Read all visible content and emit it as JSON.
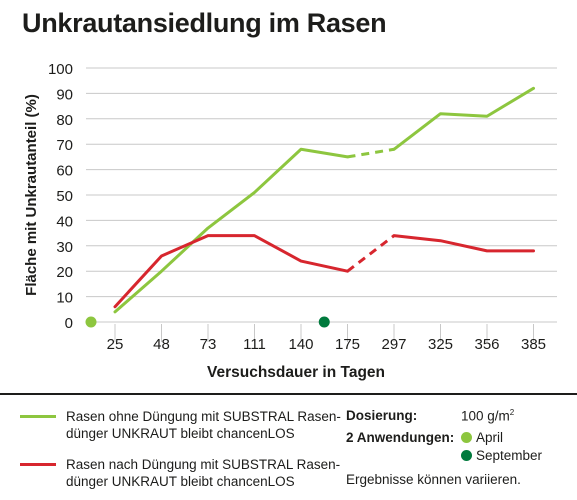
{
  "colors": {
    "green": "#8dc63f",
    "red": "#d7262e",
    "dot_april": "#8dc63f",
    "dot_september": "#007a3d",
    "grid": "#c8c8c8",
    "text": "#1d1d1b"
  },
  "chart_data": {
    "type": "line",
    "title": "Unkrautansiedlung im Rasen",
    "xlabel": "Versuchsdauer in Tagen",
    "ylabel": "Fläche mit Unkrautanteil (%)",
    "ylim": [
      0,
      100
    ],
    "yticks": [
      0,
      10,
      20,
      30,
      40,
      50,
      60,
      70,
      80,
      90,
      100
    ],
    "categories": [
      "25",
      "48",
      "73",
      "111",
      "140",
      "175",
      "297",
      "325",
      "356",
      "385"
    ],
    "grid": true,
    "dashed_segment": [
      "175",
      "297"
    ],
    "series": [
      {
        "name": "Rasen ohne Düngung mit SUBSTRAL Rasendünger UNKRAUT bleibt chancenLOS",
        "color_key": "green",
        "values": [
          4,
          20,
          37,
          51,
          68,
          65,
          68,
          82,
          81,
          92
        ]
      },
      {
        "name": "Rasen nach Düngung mit SUBSTRAL Rasendünger UNKRAUT bleibt chancenLOS",
        "color_key": "red",
        "values": [
          6,
          26,
          34,
          34,
          24,
          20,
          34,
          32,
          28,
          28
        ]
      }
    ],
    "application_markers": [
      {
        "label": "April",
        "position_between": [
          "",
          "25"
        ],
        "color_key": "dot_april"
      },
      {
        "label": "September",
        "position_between": [
          "140",
          "175"
        ],
        "color_key": "dot_september"
      }
    ]
  },
  "legend": {
    "green_line1": "Rasen ohne Düngung mit SUBSTRAL Rasen-",
    "green_line2": "dünger UNKRAUT bleibt chancenLOS",
    "red_line1": "Rasen nach Düngung mit SUBSTRAL Rasen-",
    "red_line2": "dünger UNKRAUT bleibt chancenLOS"
  },
  "info": {
    "dosierung_label": "Dosierung:",
    "dosierung_value": "100 g/m",
    "dosierung_unit_sup": "2",
    "anwendungen_label": "2 Anwendungen:",
    "april": "April",
    "september": "September",
    "note": "Ergebnisse können variieren."
  }
}
